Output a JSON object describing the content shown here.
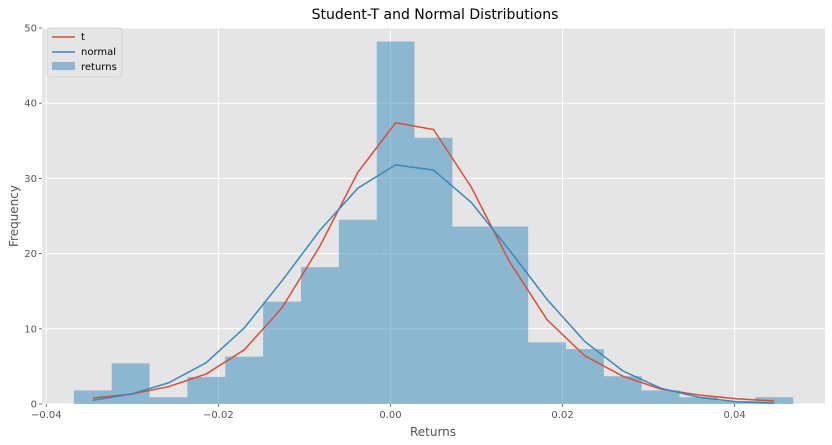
{
  "chart_data": {
    "type": "histogram-with-lines",
    "title": "Student-T and Normal Distributions",
    "xlabel": "Returns",
    "ylabel": "Frequency",
    "xlim": [
      -0.0405,
      0.0505
    ],
    "ylim": [
      0,
      50
    ],
    "grid": true,
    "legend_position": "top-left",
    "x_ticks": [
      -0.04,
      -0.02,
      0.0,
      0.02,
      0.04
    ],
    "x_tick_labels": [
      "−0.04",
      "−0.02",
      "0.00",
      "0.02",
      "0.04"
    ],
    "y_ticks": [
      0,
      10,
      20,
      30,
      40,
      50
    ],
    "y_tick_labels": [
      "0",
      "10",
      "20",
      "30",
      "40",
      "50"
    ],
    "histogram": {
      "name": "returns",
      "color": "#348abd",
      "bins": [
        {
          "x0": -0.0368,
          "x1": -0.0324,
          "value": 1.8
        },
        {
          "x0": -0.0324,
          "x1": -0.028,
          "value": 5.4
        },
        {
          "x0": -0.028,
          "x1": -0.0236,
          "value": 0.9
        },
        {
          "x0": -0.0236,
          "x1": -0.0192,
          "value": 3.6
        },
        {
          "x0": -0.0192,
          "x1": -0.0148,
          "value": 6.3
        },
        {
          "x0": -0.0148,
          "x1": -0.0104,
          "value": 13.6
        },
        {
          "x0": -0.0104,
          "x1": -0.006,
          "value": 18.2
        },
        {
          "x0": -0.006,
          "x1": -0.0016,
          "value": 24.5
        },
        {
          "x0": -0.0016,
          "x1": 0.0028,
          "value": 48.2
        },
        {
          "x0": 0.0028,
          "x1": 0.0072,
          "value": 35.4
        },
        {
          "x0": 0.0072,
          "x1": 0.0116,
          "value": 23.6
        },
        {
          "x0": 0.0116,
          "x1": 0.016,
          "value": 23.6
        },
        {
          "x0": 0.016,
          "x1": 0.0204,
          "value": 8.2
        },
        {
          "x0": 0.0204,
          "x1": 0.0248,
          "value": 7.3
        },
        {
          "x0": 0.0248,
          "x1": 0.0292,
          "value": 3.7
        },
        {
          "x0": 0.0292,
          "x1": 0.0336,
          "value": 1.8
        },
        {
          "x0": 0.0336,
          "x1": 0.038,
          "value": 0.9
        },
        {
          "x0": 0.038,
          "x1": 0.0424,
          "value": 0.4
        },
        {
          "x0": 0.0424,
          "x1": 0.0468,
          "value": 0.9
        }
      ]
    },
    "series": [
      {
        "name": "t",
        "color": "#e24a33",
        "x": [
          -0.0346,
          -0.0302,
          -0.0258,
          -0.0214,
          -0.017,
          -0.0126,
          -0.0082,
          -0.0038,
          0.0006,
          0.005,
          0.0094,
          0.0138,
          0.0182,
          0.0226,
          0.027,
          0.0314,
          0.0358,
          0.0402,
          0.0446
        ],
        "y": [
          0.8,
          1.3,
          2.3,
          4.0,
          7.2,
          12.8,
          21.0,
          30.8,
          37.4,
          36.5,
          28.8,
          19.0,
          11.2,
          6.4,
          3.7,
          2.0,
          1.2,
          0.7,
          0.4
        ]
      },
      {
        "name": "normal",
        "color": "#348abd",
        "x": [
          -0.0346,
          -0.0302,
          -0.0258,
          -0.0214,
          -0.017,
          -0.0126,
          -0.0082,
          -0.0038,
          0.0006,
          0.005,
          0.0094,
          0.0138,
          0.0182,
          0.0226,
          0.027,
          0.0314,
          0.0358,
          0.0402,
          0.0446
        ],
        "y": [
          0.5,
          1.3,
          2.8,
          5.5,
          10.1,
          16.4,
          23.1,
          28.7,
          31.8,
          31.1,
          26.8,
          20.5,
          13.9,
          8.3,
          4.4,
          2.1,
          0.9,
          0.3,
          0.1
        ]
      }
    ],
    "legend": [
      "t",
      "normal",
      "returns"
    ]
  }
}
